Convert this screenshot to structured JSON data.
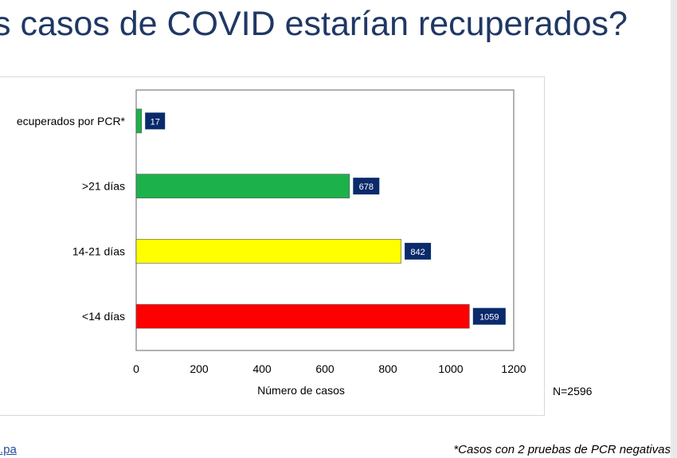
{
  "slide": {
    "title": "s casos de COVID estarían recuperados?",
    "n_label": "N=2596",
    "footer_link": ".pa",
    "footnote": "*Casos con 2 pruebas de PCR negativas"
  },
  "chart_data": {
    "type": "bar",
    "orientation": "horizontal",
    "categories": [
      "ecuperados por PCR*",
      ">21 días",
      "14-21 días",
      "<14 días"
    ],
    "values": [
      17,
      678,
      842,
      1059
    ],
    "colors": [
      "#1db14b",
      "#1db14b",
      "#ffff00",
      "#ff0000"
    ],
    "data_labels": [
      "17",
      "678",
      "842",
      "1059"
    ],
    "xlabel": "Número de casos",
    "ylabel": "",
    "xlim": [
      0,
      1200
    ],
    "xticks": [
      0,
      200,
      400,
      600,
      800,
      1000,
      1200
    ],
    "label_box_color": "#0a2a6b",
    "grid": false
  }
}
